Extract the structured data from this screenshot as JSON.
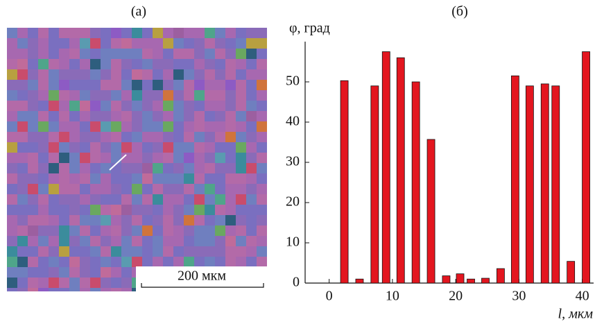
{
  "panel_a": {
    "label": "(а)",
    "scale_bar": "200 мкм"
  },
  "chart_data": {
    "type": "bar",
    "title": "(б)",
    "ylabel": "φ, град",
    "xlabel": "l, мкм",
    "color": "#e3161f",
    "x": [
      2.4,
      4.8,
      7.2,
      9.0,
      11.3,
      13.7,
      16.1,
      18.5,
      20.7,
      22.4,
      24.7,
      27.1,
      29.4,
      31.7,
      34.1,
      35.8,
      38.2,
      40.6
    ],
    "values": [
      50.3,
      1,
      49,
      57.5,
      56,
      50,
      35.7,
      1.8,
      2.3,
      1,
      1.2,
      3.6,
      51.5,
      49,
      49.5,
      49,
      5.4,
      57.5
    ],
    "xlim": [
      -3.8,
      41.8
    ],
    "ylim": [
      0,
      60
    ],
    "xticks": [
      0,
      10,
      20,
      30,
      40
    ],
    "yticks": [
      0,
      10,
      20,
      30,
      40,
      50
    ]
  }
}
